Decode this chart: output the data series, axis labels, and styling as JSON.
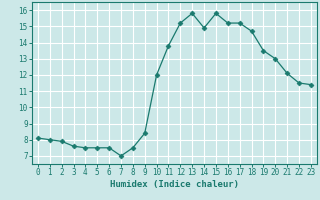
{
  "x": [
    0,
    1,
    2,
    3,
    4,
    5,
    6,
    7,
    8,
    9,
    10,
    11,
    12,
    13,
    14,
    15,
    16,
    17,
    18,
    19,
    20,
    21,
    22,
    23
  ],
  "y": [
    8.1,
    8.0,
    7.9,
    7.6,
    7.5,
    7.5,
    7.5,
    7.0,
    7.5,
    8.4,
    12.0,
    13.8,
    15.2,
    15.8,
    14.9,
    15.8,
    15.2,
    15.2,
    14.7,
    13.5,
    13.0,
    12.1,
    11.5,
    11.4
  ],
  "line_color": "#1a7a6e",
  "marker": "D",
  "marker_size": 2.5,
  "bg_color": "#cce8e8",
  "grid_color": "#ffffff",
  "xlabel": "Humidex (Indice chaleur)",
  "xlim": [
    -0.5,
    23.5
  ],
  "ylim": [
    6.5,
    16.5
  ],
  "yticks": [
    7,
    8,
    9,
    10,
    11,
    12,
    13,
    14,
    15,
    16
  ],
  "xticks": [
    0,
    1,
    2,
    3,
    4,
    5,
    6,
    7,
    8,
    9,
    10,
    11,
    12,
    13,
    14,
    15,
    16,
    17,
    18,
    19,
    20,
    21,
    22,
    23
  ],
  "tick_color": "#1a7a6e",
  "label_color": "#1a7a6e",
  "xlabel_fontsize": 6.5,
  "tick_fontsize": 5.5
}
